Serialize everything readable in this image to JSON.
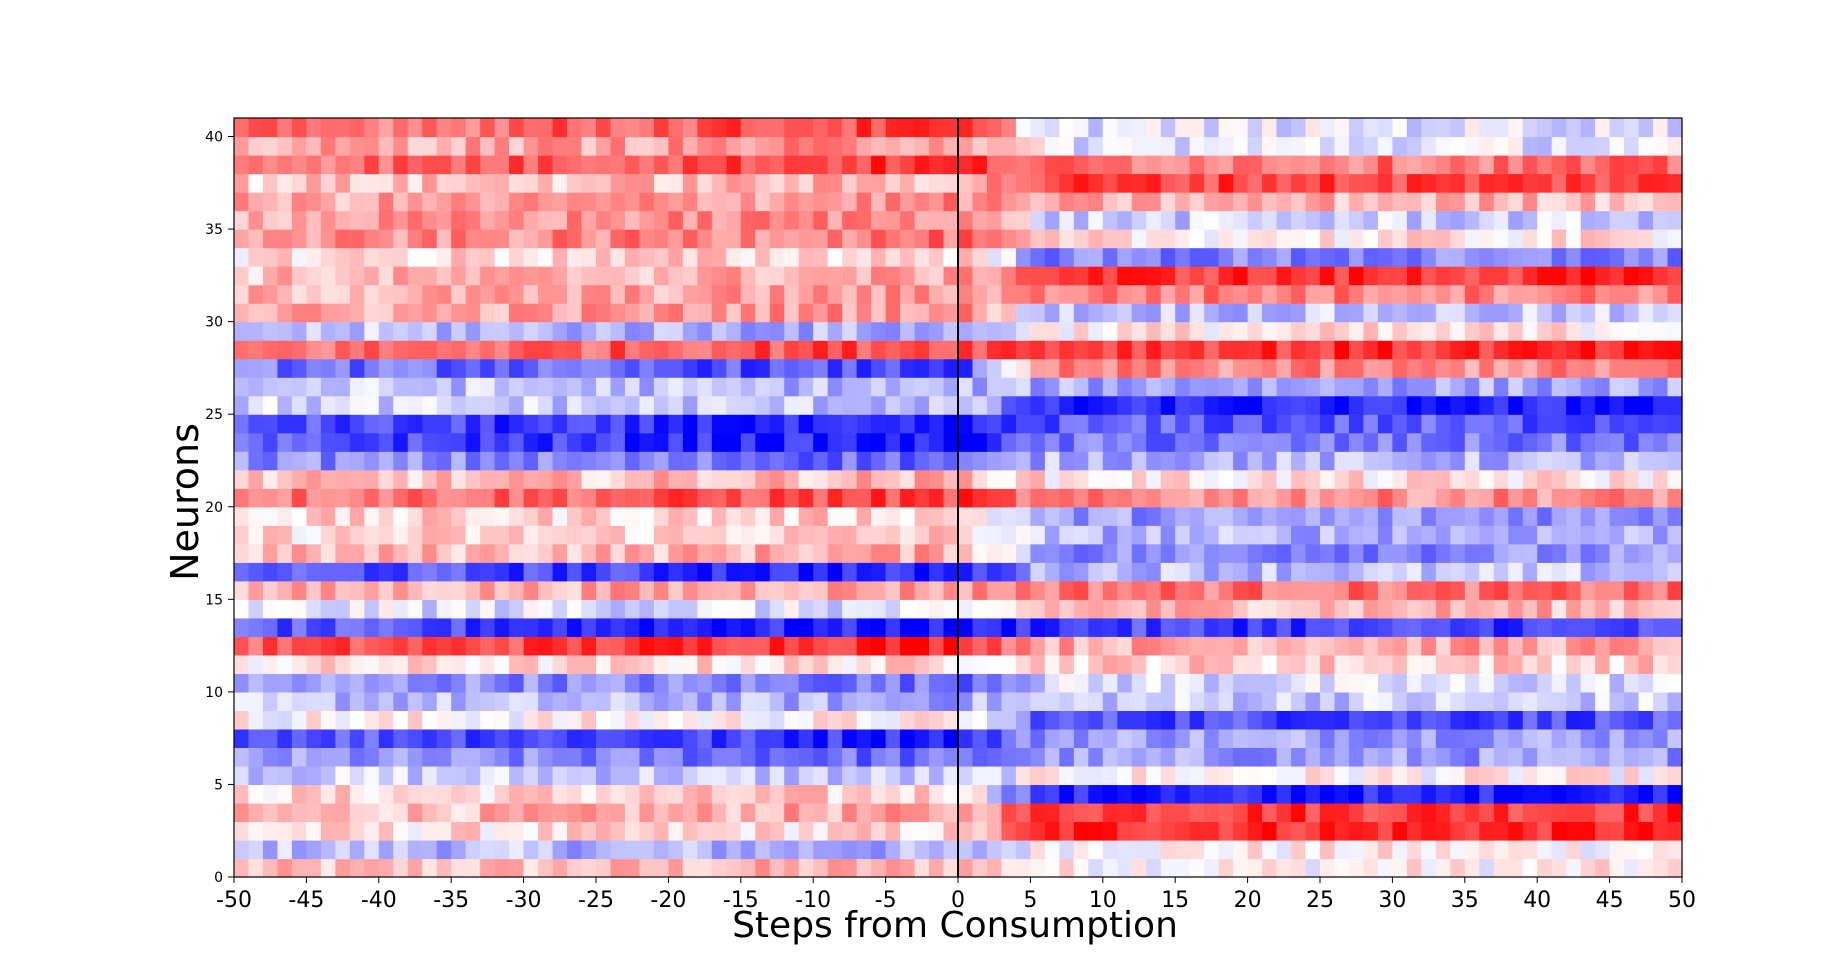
{
  "chart_data": {
    "type": "heatmap",
    "xlabel": "Steps from Consumption",
    "ylabel": "Neurons",
    "xlim": [
      -50,
      50
    ],
    "ylim": [
      0,
      41
    ],
    "x_ticks": [
      -50,
      -45,
      -40,
      -35,
      -30,
      -25,
      -20,
      -15,
      -10,
      -5,
      0,
      5,
      10,
      15,
      20,
      25,
      30,
      35,
      40,
      45,
      50
    ],
    "y_ticks": [
      0,
      5,
      10,
      15,
      20,
      25,
      30,
      35,
      40
    ],
    "n_steps": 100,
    "vline_x": 0,
    "colormap": "bwr",
    "color_low": "#0000ff",
    "color_mid": "#ffffff",
    "color_high": "#ff0000",
    "neuron_profiles": [
      {
        "neuron": 0,
        "pre": 0.3,
        "post": 0.05
      },
      {
        "neuron": 1,
        "pre": -0.35,
        "post": 0.05
      },
      {
        "neuron": 2,
        "pre": 0.15,
        "post": 0.85
      },
      {
        "neuron": 3,
        "pre": 0.35,
        "post": 0.8
      },
      {
        "neuron": 4,
        "pre": 0.2,
        "post": -0.9
      },
      {
        "neuron": 5,
        "pre": -0.25,
        "post": 0.05
      },
      {
        "neuron": 6,
        "pre": -0.6,
        "post": -0.4
      },
      {
        "neuron": 7,
        "pre": -0.85,
        "post": -0.35
      },
      {
        "neuron": 8,
        "pre": 0.05,
        "post": -0.7
      },
      {
        "neuron": 9,
        "pre": -0.35,
        "post": -0.2
      },
      {
        "neuron": 10,
        "pre": -0.55,
        "post": -0.15
      },
      {
        "neuron": 11,
        "pre": 0.15,
        "post": 0.2
      },
      {
        "neuron": 12,
        "pre": 0.9,
        "post": 0.35
      },
      {
        "neuron": 13,
        "pre": -0.95,
        "post": -0.75
      },
      {
        "neuron": 14,
        "pre": -0.15,
        "post": 0.3
      },
      {
        "neuron": 15,
        "pre": 0.4,
        "post": 0.55
      },
      {
        "neuron": 16,
        "pre": -0.9,
        "post": -0.25
      },
      {
        "neuron": 17,
        "pre": 0.35,
        "post": -0.45
      },
      {
        "neuron": 18,
        "pre": 0.2,
        "post": -0.3
      },
      {
        "neuron": 19,
        "pre": 0.2,
        "post": -0.4
      },
      {
        "neuron": 20,
        "pre": 0.75,
        "post": 0.45
      },
      {
        "neuron": 21,
        "pre": 0.3,
        "post": 0.1
      },
      {
        "neuron": 22,
        "pre": -0.6,
        "post": -0.3
      },
      {
        "neuron": 23,
        "pre": -0.95,
        "post": -0.55
      },
      {
        "neuron": 24,
        "pre": -0.98,
        "post": -0.65
      },
      {
        "neuron": 25,
        "pre": -0.25,
        "post": -0.9
      },
      {
        "neuron": 26,
        "pre": -0.3,
        "post": -0.35
      },
      {
        "neuron": 27,
        "pre": -0.75,
        "post": 0.45
      },
      {
        "neuron": 28,
        "pre": 0.75,
        "post": 0.8
      },
      {
        "neuron": 29,
        "pre": -0.35,
        "post": 0.1
      },
      {
        "neuron": 30,
        "pre": 0.45,
        "post": -0.25
      },
      {
        "neuron": 31,
        "pre": 0.4,
        "post": 0.5
      },
      {
        "neuron": 32,
        "pre": 0.35,
        "post": 0.8
      },
      {
        "neuron": 33,
        "pre": 0.2,
        "post": -0.5
      },
      {
        "neuron": 34,
        "pre": 0.55,
        "post": 0.1
      },
      {
        "neuron": 35,
        "pre": 0.5,
        "post": -0.2
      },
      {
        "neuron": 36,
        "pre": 0.45,
        "post": 0.3
      },
      {
        "neuron": 37,
        "pre": 0.3,
        "post": 0.75
      },
      {
        "neuron": 38,
        "pre": 0.8,
        "post": 0.55
      },
      {
        "neuron": 39,
        "pre": 0.45,
        "post": -0.1
      },
      {
        "neuron": 40,
        "pre": 0.75,
        "post": -0.1
      },
      {
        "neuron": 41,
        "pre": 0.15,
        "post": -0.35
      }
    ]
  }
}
